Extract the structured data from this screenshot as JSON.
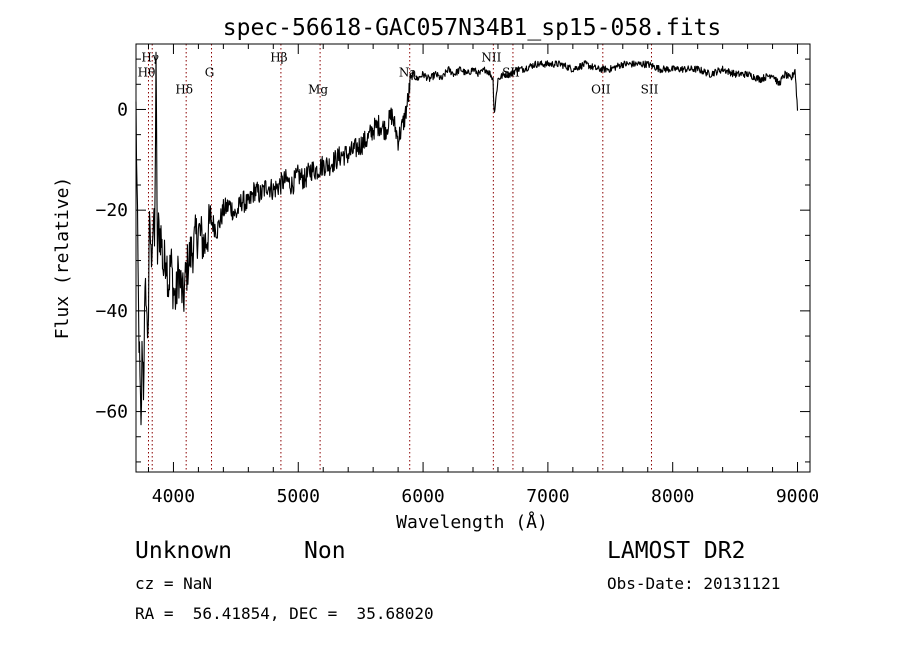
{
  "chart_data": {
    "type": "line",
    "title": "spec-56618-GAC057N34B1_sp15-058.fits",
    "xlabel": "Wavelength (Å)",
    "ylabel": "Flux (relative)",
    "xlim": [
      3700,
      9100
    ],
    "ylim": [
      -72,
      13
    ],
    "xticks": [
      4000,
      5000,
      6000,
      7000,
      8000,
      9000
    ],
    "yticks": [
      0,
      -20,
      -40,
      -60
    ],
    "line_color": "#000000",
    "marker_color": "#8b0000",
    "lines": [
      {
        "label": "Hγ",
        "x": 3830,
        "label_y": 9.5
      },
      {
        "label": "Hθ",
        "x": 3800,
        "label_y": 6.5
      },
      {
        "label": "Hδ",
        "x": 4102,
        "label_y": 3.2
      },
      {
        "label": "G",
        "x": 4305,
        "label_y": 6.5
      },
      {
        "label": "Hβ",
        "x": 4861,
        "label_y": 9.5
      },
      {
        "label": "Mg",
        "x": 5175,
        "label_y": 3.2
      },
      {
        "label": "Na",
        "x": 5893,
        "label_y": 6.5
      },
      {
        "label": "NII",
        "x": 6563,
        "label_y": 9.5
      },
      {
        "label": "SII",
        "x": 6720,
        "label_y": 6.5
      },
      {
        "label": "OII",
        "x": 7440,
        "label_y": 3.2
      },
      {
        "label": "SII",
        "x": 7830,
        "label_y": 3.2
      }
    ],
    "spectrum": {
      "x": [
        3700,
        3720,
        3740,
        3750,
        3760,
        3770,
        3780,
        3790,
        3800,
        3810,
        3820,
        3830,
        3840,
        3850,
        3860,
        3870,
        3880,
        3900,
        3920,
        3940,
        3960,
        3980,
        4000,
        4020,
        4040,
        4060,
        4080,
        4100,
        4120,
        4150,
        4200,
        4250,
        4300,
        4350,
        4400,
        4450,
        4500,
        4550,
        4600,
        4650,
        4700,
        4750,
        4800,
        4850,
        4900,
        4950,
        5000,
        5050,
        5100,
        5150,
        5200,
        5250,
        5300,
        5350,
        5400,
        5450,
        5500,
        5550,
        5600,
        5650,
        5700,
        5750,
        5800,
        5850,
        5880,
        5900,
        5920,
        5950,
        6000,
        6050,
        6100,
        6150,
        6200,
        6250,
        6300,
        6350,
        6400,
        6450,
        6500,
        6540,
        6560,
        6570,
        6600,
        6650,
        6700,
        6750,
        6800,
        6900,
        7000,
        7100,
        7200,
        7300,
        7400,
        7500,
        7600,
        7700,
        7800,
        7900,
        8000,
        8100,
        8200,
        8300,
        8400,
        8500,
        8600,
        8700,
        8800,
        8850,
        8900,
        8950,
        8980,
        9000
      ],
      "y": [
        0,
        -40,
        -65,
        -45,
        -55,
        -40,
        -35,
        -45,
        -40,
        -20,
        -30,
        -25,
        -22,
        -28,
        12,
        -30,
        -24,
        -25,
        -32,
        -28,
        -35,
        -30,
        -36,
        -38,
        -32,
        -35,
        -38,
        -33,
        -30,
        -28,
        -24,
        -27,
        -22,
        -24,
        -20,
        -19,
        -21,
        -18,
        -19,
        -16,
        -17,
        -15,
        -16,
        -15,
        -14,
        -15,
        -13,
        -14,
        -12,
        -12,
        -11,
        -11,
        -10,
        -9,
        -9,
        -8,
        -7,
        -6,
        -4,
        -3,
        -4,
        -1,
        -6,
        -2,
        2,
        6,
        7,
        6,
        7,
        6,
        7,
        6,
        8,
        7,
        8,
        7,
        8,
        7,
        8,
        7,
        6,
        -1,
        6,
        7,
        7,
        8,
        8,
        9,
        9,
        9,
        8,
        9,
        8,
        8,
        9,
        9,
        9,
        8,
        8,
        8,
        8,
        7,
        8,
        7,
        7,
        6,
        7,
        5,
        7,
        6,
        8,
        0
      ]
    }
  },
  "footer": {
    "object_class": "Unknown",
    "subclass": "Non",
    "survey": "LAMOST DR2",
    "redshift": "cz = NaN",
    "obs_date": "Obs-Date: 20131121",
    "coords": "RA =  56.41854, DEC =  35.68020"
  }
}
